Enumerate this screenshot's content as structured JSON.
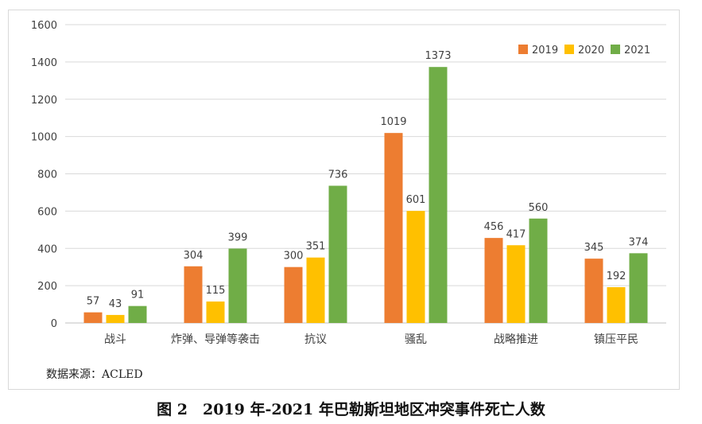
{
  "chart_data": {
    "type": "bar",
    "categories": [
      "战斗",
      "炸弹、导弹等袭击",
      "抗议",
      "骚乱",
      "战略推进",
      "镇压平民"
    ],
    "series": [
      {
        "name": "2019",
        "color": "#ED7D31",
        "values": [
          57,
          304,
          300,
          1019,
          456,
          345
        ]
      },
      {
        "name": "2020",
        "color": "#FFC000",
        "values": [
          43,
          115,
          351,
          601,
          417,
          192
        ]
      },
      {
        "name": "2021",
        "color": "#70AD47",
        "values": [
          91,
          399,
          736,
          1373,
          560,
          374
        ]
      }
    ],
    "ylim": [
      0,
      1600
    ],
    "yticks": [
      0,
      200,
      400,
      600,
      800,
      1000,
      1200,
      1400,
      1600
    ],
    "grid": true,
    "legend_position": "top-right",
    "title": "",
    "xlabel": "",
    "ylabel": ""
  },
  "source_note": "数据来源：ACLED",
  "caption": "图 2　2019 年-2021 年巴勒斯坦地区冲突事件死亡人数"
}
